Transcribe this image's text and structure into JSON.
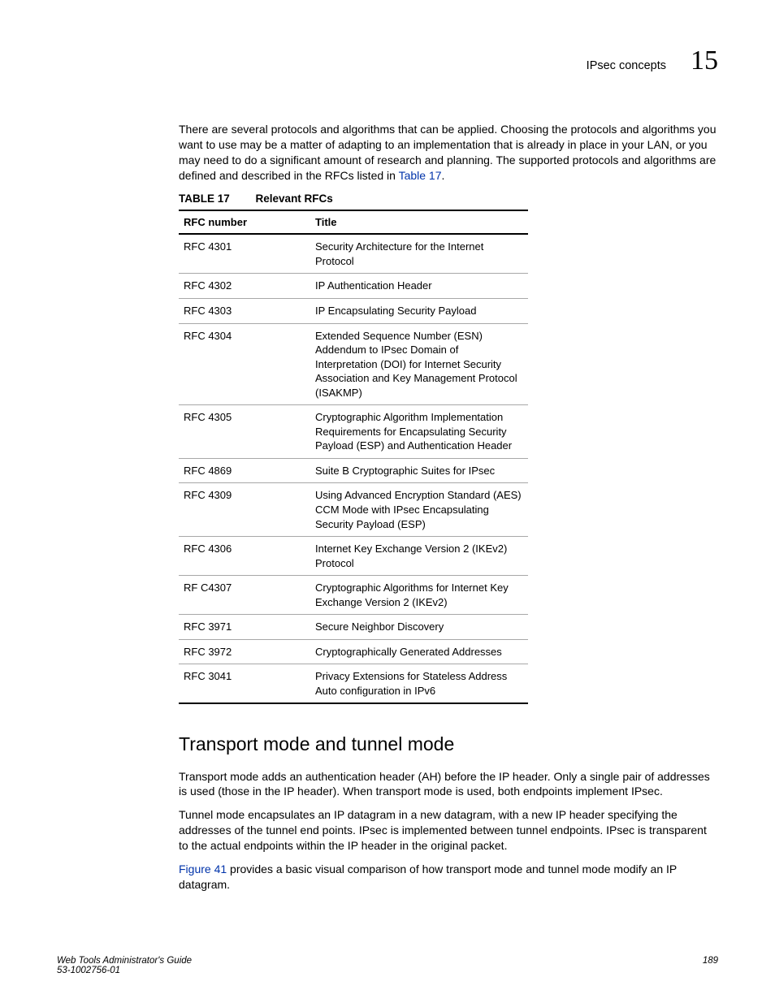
{
  "header": {
    "topic": "IPsec concepts",
    "chapter": "15"
  },
  "intro_pre": "There are several protocols and algorithms that can be applied. Choosing the protocols and algorithms you want to use may be a matter of adapting to an implementation that is already in place in your LAN, or you may need to do a significant amount of research and planning. The supported protocols and algorithms are defined and described in the RFCs listed in ",
  "intro_link": "Table 17",
  "intro_post": ".",
  "table": {
    "caption_num": "TABLE 17",
    "caption_title": "Relevant RFCs",
    "columns": [
      "RFC number",
      "Title"
    ],
    "rows": [
      [
        "RFC 4301",
        "Security Architecture for the Internet Protocol"
      ],
      [
        "RFC 4302",
        "IP Authentication Header"
      ],
      [
        "RFC 4303",
        "IP Encapsulating Security Payload"
      ],
      [
        "RFC 4304",
        "Extended Sequence Number (ESN) Addendum to IPsec Domain of Interpretation (DOI) for Internet Security Association and Key Management Protocol (ISAKMP)"
      ],
      [
        "RFC 4305",
        "Cryptographic Algorithm Implementation Requirements for Encapsulating Security Payload (ESP) and Authentication Header"
      ],
      [
        "RFC 4869",
        "Suite B Cryptographic Suites for IPsec"
      ],
      [
        "RFC 4309",
        "Using Advanced Encryption Standard (AES) CCM Mode with IPsec Encapsulating Security Payload (ESP)"
      ],
      [
        "RFC 4306",
        "Internet Key Exchange Version 2 (IKEv2) Protocol"
      ],
      [
        "RF C4307",
        "Cryptographic Algorithms for Internet Key Exchange Version 2 (IKEv2)"
      ],
      [
        "RFC 3971",
        "Secure Neighbor Discovery"
      ],
      [
        "RFC 3972",
        "Cryptographically Generated Addresses"
      ],
      [
        "RFC 3041",
        "Privacy Extensions for Stateless Address Auto configuration in IPv6"
      ]
    ]
  },
  "section_heading": "Transport mode and tunnel mode",
  "p1": "Transport mode adds an authentication header (AH) before the IP header. Only a single pair of addresses is used (those in the IP header). When transport mode is used, both endpoints implement IPsec.",
  "p2": "Tunnel mode encapsulates an IP datagram in a new datagram, with a new IP header specifying the addresses of the tunnel end points. IPsec is implemented between tunnel endpoints. IPsec is transparent to the actual endpoints within the IP header in the original packet.",
  "p3_link": "Figure 41",
  "p3_post": " provides a basic visual comparison of how transport mode and tunnel mode modify an IP datagram.",
  "footer": {
    "book": "Web Tools Administrator's Guide",
    "docnum": "53-1002756-01",
    "page": "189"
  }
}
